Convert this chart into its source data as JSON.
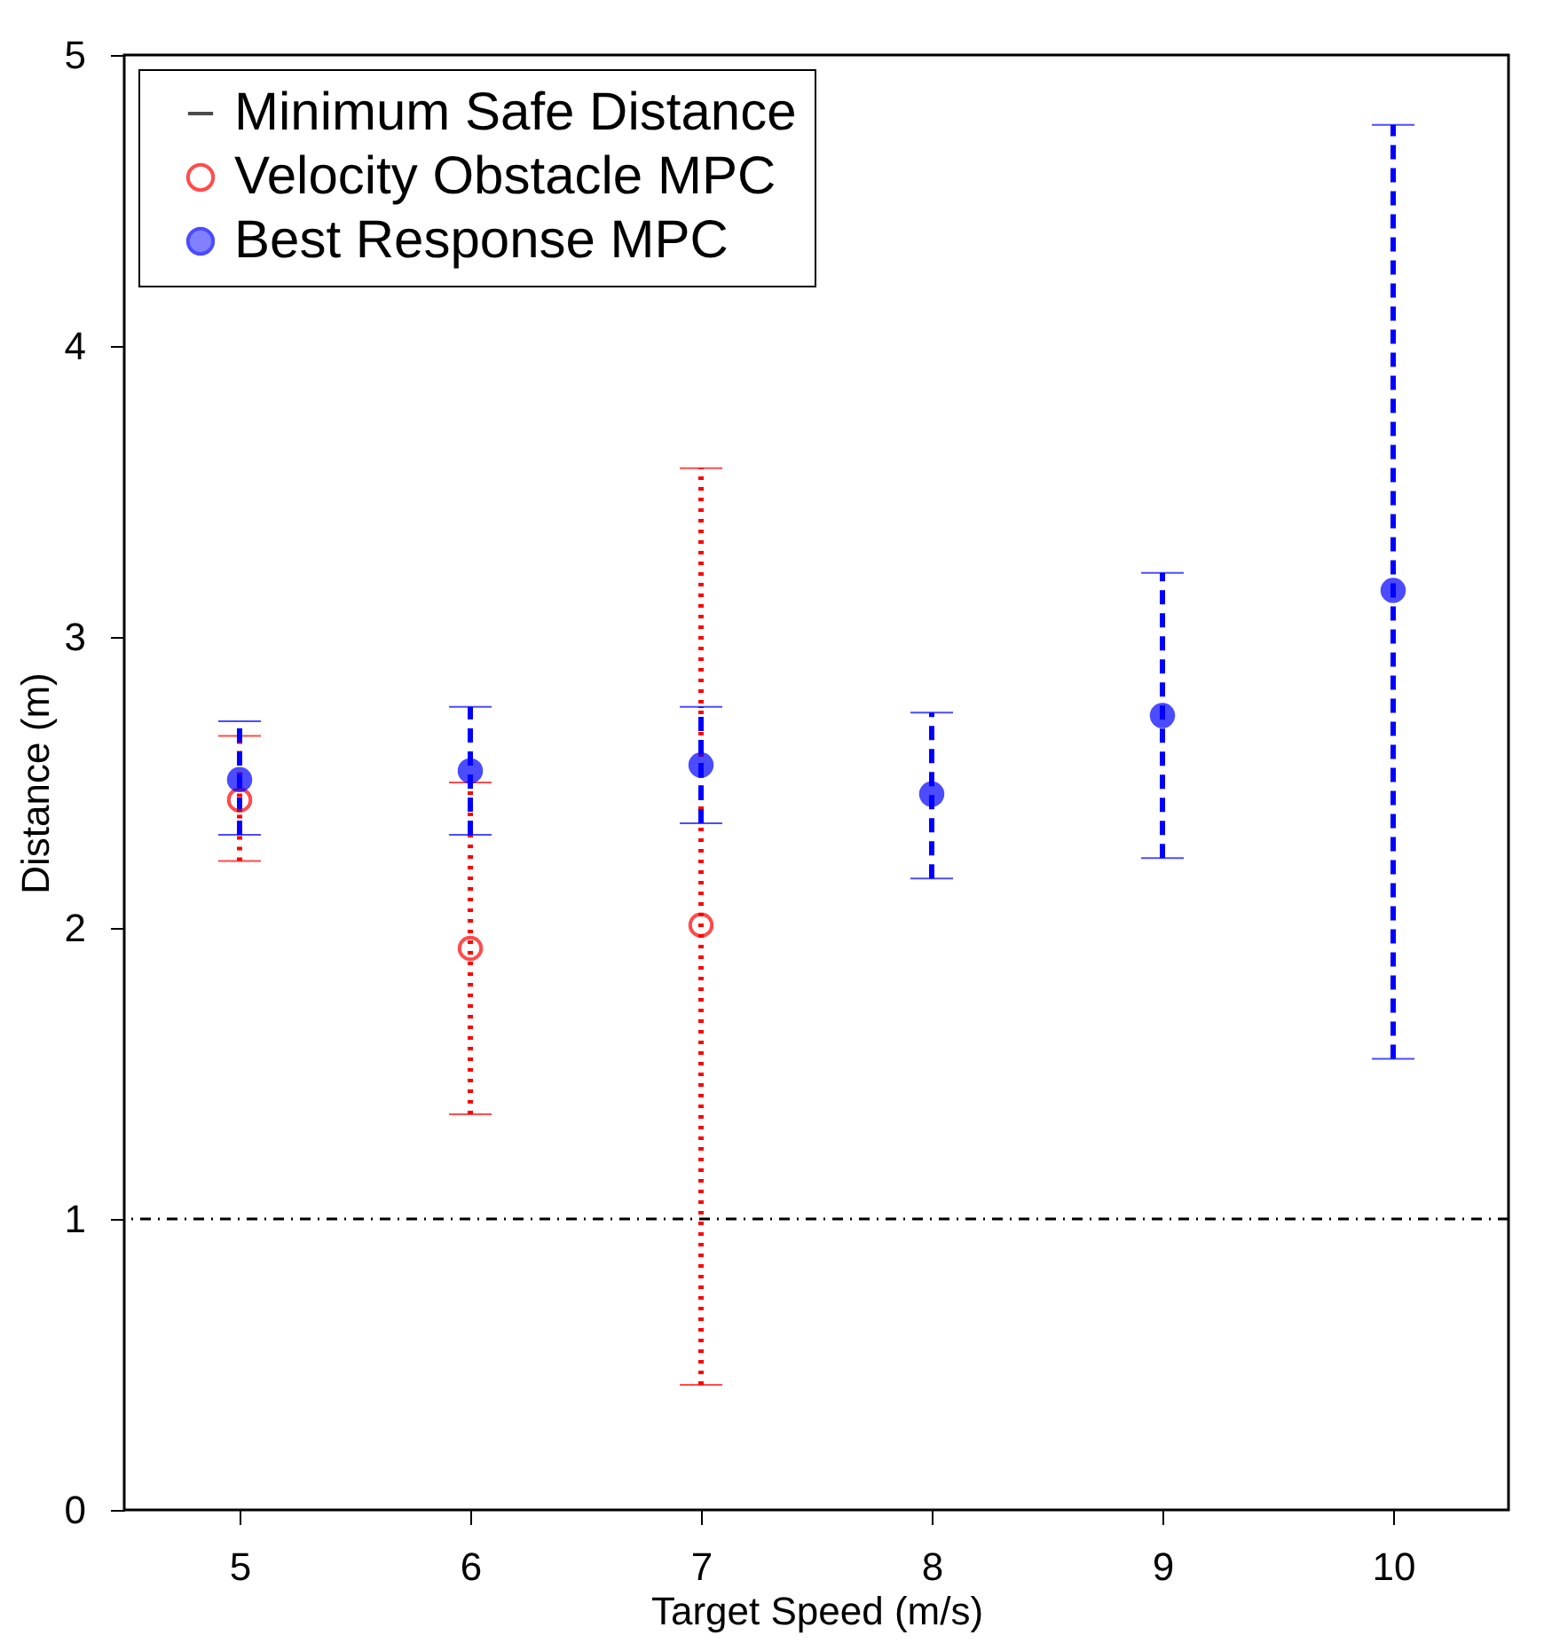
{
  "chart_data": {
    "type": "scatter",
    "xlabel": "Target Speed (m/s)",
    "ylabel": "Distance (m)",
    "xlim": [
      4.5,
      10.5
    ],
    "xticks": [
      5,
      6,
      7,
      8,
      9,
      10
    ],
    "ylim": [
      0,
      5
    ],
    "yticks": [
      0,
      1,
      2,
      3,
      4,
      5
    ],
    "legend": "top left",
    "marker": "circle",
    "grid": false,
    "ref_lines": [
      {
        "axis": "y",
        "value": 1,
        "label": "Minimum Safe Distance",
        "color": "#000000",
        "line_style": "dashdot"
      }
    ],
    "series": [
      {
        "name": "Velocity Obstacle MPC",
        "color": "#ff0000",
        "line_style": "dotted",
        "x": [
          5,
          6,
          7
        ],
        "values": [
          2.44,
          1.93,
          2.01
        ],
        "errors": [
          [
            2.23,
            2.66
          ],
          [
            1.36,
            2.5
          ],
          [
            0.43,
            3.58
          ]
        ]
      },
      {
        "name": "Best Response MPC",
        "color": "#0000ff",
        "line_style": "dashed",
        "x": [
          5,
          6,
          7,
          8,
          9,
          10
        ],
        "values": [
          2.51,
          2.54,
          2.56,
          2.46,
          2.73,
          3.16
        ],
        "errors": [
          [
            2.32,
            2.71
          ],
          [
            2.32,
            2.76
          ],
          [
            2.36,
            2.76
          ],
          [
            2.17,
            2.74
          ],
          [
            2.24,
            3.22
          ],
          [
            1.55,
            4.76
          ]
        ]
      }
    ]
  }
}
